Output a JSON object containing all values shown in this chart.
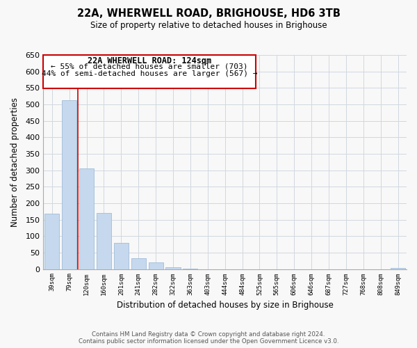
{
  "title": "22A, WHERWELL ROAD, BRIGHOUSE, HD6 3TB",
  "subtitle": "Size of property relative to detached houses in Brighouse",
  "xlabel": "Distribution of detached houses by size in Brighouse",
  "ylabel": "Number of detached properties",
  "categories": [
    "39sqm",
    "79sqm",
    "120sqm",
    "160sqm",
    "201sqm",
    "241sqm",
    "282sqm",
    "322sqm",
    "363sqm",
    "403sqm",
    "444sqm",
    "484sqm",
    "525sqm",
    "565sqm",
    "606sqm",
    "646sqm",
    "687sqm",
    "727sqm",
    "768sqm",
    "808sqm",
    "849sqm"
  ],
  "values": [
    168,
    513,
    305,
    171,
    79,
    33,
    20,
    5,
    1,
    0,
    0,
    0,
    0,
    0,
    0,
    0,
    0,
    0,
    0,
    0,
    3
  ],
  "bar_color": "#c5d8ed",
  "bar_edge_color": "#a0bcd8",
  "vline_color": "#cc0000",
  "box_text_line1": "22A WHERWELL ROAD: 124sqm",
  "box_text_line2": "← 55% of detached houses are smaller (703)",
  "box_text_line3": "44% of semi-detached houses are larger (567) →",
  "box_color": "white",
  "box_edge_color": "#cc0000",
  "ylim": [
    0,
    650
  ],
  "yticks": [
    0,
    50,
    100,
    150,
    200,
    250,
    300,
    350,
    400,
    450,
    500,
    550,
    600,
    650
  ],
  "footnote1": "Contains HM Land Registry data © Crown copyright and database right 2024.",
  "footnote2": "Contains public sector information licensed under the Open Government Licence v3.0.",
  "background_color": "#f8f8f8",
  "grid_color": "#d0d8e0"
}
